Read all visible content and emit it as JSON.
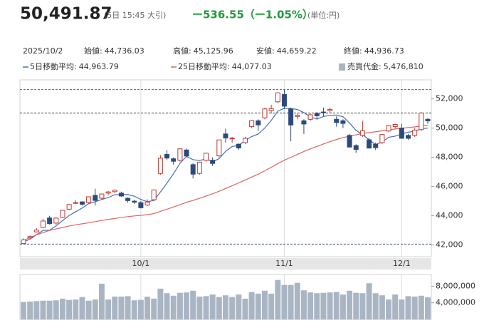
{
  "chart_data": {
    "type": "candlestick",
    "header": {
      "price": "50,491.87",
      "time": "(5日 15:45 大引)",
      "change": "ー536.55（ー1.05%）",
      "unit": "(単位:円)"
    },
    "info": {
      "date": "2025/10/2",
      "items": [
        {
          "label": "始値:",
          "value": "44,736.03"
        },
        {
          "label": "高値:",
          "value": "45,125.96"
        },
        {
          "label": "安値:",
          "value": "44,659.22"
        },
        {
          "label": "終値:",
          "value": "44,936.73"
        }
      ]
    },
    "categories": [
      null,
      null,
      null,
      null,
      null,
      null,
      null,
      null,
      null,
      null,
      null,
      null,
      null,
      null,
      null,
      null,
      null,
      null,
      "10/1",
      null,
      null,
      null,
      null,
      null,
      null,
      null,
      null,
      null,
      null,
      null,
      null,
      null,
      null,
      null,
      null,
      null,
      null,
      null,
      null,
      null,
      "11/1",
      null,
      null,
      null,
      null,
      null,
      null,
      null,
      null,
      null,
      null,
      null,
      null,
      null,
      null,
      null,
      null,
      null,
      "12/1",
      null,
      null,
      null,
      null
    ],
    "open": [
      42100,
      42500,
      42900,
      43200,
      43850,
      43500,
      43900,
      44450,
      44900,
      44950,
      44900,
      45400,
      45200,
      45550,
      45650,
      45550,
      45200,
      45000,
      44900,
      44736.03,
      45100,
      46900,
      48200,
      47900,
      47800,
      48500,
      47500,
      46900,
      47800,
      47800,
      48100,
      49600,
      49300,
      48900,
      49000,
      50100,
      50500,
      50700,
      51200,
      51800,
      52300,
      51300,
      50800,
      50500,
      50600,
      51000,
      51100,
      51200,
      50600,
      50500,
      49500,
      48800,
      49500,
      49200,
      48900,
      49000,
      49800,
      50100,
      50000,
      49500,
      49500,
      49900,
      50600
    ],
    "high": [
      42450,
      42650,
      43150,
      43800,
      44000,
      43900,
      44400,
      44800,
      45050,
      44990,
      45300,
      45850,
      45500,
      45700,
      45800,
      45650,
      45250,
      45100,
      45000,
      45125.96,
      45800,
      48150,
      48500,
      48000,
      48600,
      48600,
      47600,
      47700,
      48300,
      48000,
      49200,
      49950,
      49400,
      48950,
      49400,
      50550,
      50600,
      51400,
      51600,
      52450,
      52640,
      51400,
      51000,
      50600,
      51000,
      51100,
      51400,
      51400,
      50800,
      50600,
      49600,
      48900,
      50500,
      49300,
      49000,
      49600,
      50200,
      50300,
      50300,
      49600,
      50000,
      51100,
      50700
    ],
    "low": [
      42060,
      42400,
      42850,
      43150,
      43400,
      43400,
      43850,
      44400,
      44800,
      44700,
      44850,
      44700,
      45100,
      45400,
      45550,
      45300,
      44900,
      44800,
      44500,
      44659.22,
      45000,
      46800,
      47800,
      47500,
      47700,
      48000,
      46550,
      46800,
      47700,
      47400,
      48000,
      49000,
      49000,
      48500,
      48900,
      50000,
      49800,
      50600,
      51000,
      51700,
      51300,
      49100,
      50600,
      49600,
      50500,
      50600,
      50800,
      51000,
      50100,
      50000,
      48700,
      48300,
      49400,
      48600,
      48500,
      48900,
      49700,
      50000,
      49300,
      49200,
      49400,
      49800,
      50300
    ],
    "close": [
      42350,
      42580,
      43020,
      43640,
      43460,
      43840,
      44370,
      44770,
      44900,
      44790,
      45300,
      45050,
      45490,
      45630,
      45750,
      45350,
      45040,
      44930,
      44550,
      44936.73,
      45770,
      47940,
      47950,
      47730,
      48580,
      48090,
      46850,
      47670,
      48280,
      47580,
      49190,
      49320,
      49310,
      48640,
      49300,
      50510,
      50220,
      51310,
      51330,
      52410,
      51500,
      50210,
      50880,
      50280,
      50910,
      50840,
      51060,
      51280,
      50380,
      50320,
      48700,
      48540,
      49820,
      48630,
      48660,
      49560,
      50170,
      50250,
      49300,
      49300,
      49860,
      51030,
      50491.87
    ],
    "up_color": "#c0392b",
    "down_color": "#2c4a7c",
    "series": [
      {
        "name": "5日移動平均:",
        "legend_label": "44,963.79",
        "color": "#4a6fb5",
        "values": [
          42200,
          42400,
          42700,
          43000,
          43010,
          43310,
          43670,
          44020,
          44270,
          44530,
          44830,
          44960,
          45110,
          45250,
          45440,
          45450,
          45450,
          45340,
          45120,
          44963.79,
          45050,
          45630,
          46230,
          46870,
          47590,
          48060,
          47840,
          47780,
          47890,
          47690,
          47910,
          48410,
          48740,
          48810,
          49150,
          49420,
          49600,
          50000,
          50530,
          51160,
          51350,
          51350,
          51270,
          51060,
          50760,
          50620,
          50790,
          50870,
          50890,
          50780,
          50350,
          49840,
          49550,
          49200,
          48870,
          49040,
          49370,
          49450,
          49590,
          49720,
          49780,
          49950,
          50000
        ]
      },
      {
        "name": "25日移動平均:",
        "legend_label": "44,077.03",
        "color": "#d9665f",
        "values": [
          42300,
          42500,
          42700,
          42850,
          43000,
          43100,
          43200,
          43300,
          43380,
          43450,
          43520,
          43600,
          43680,
          43750,
          43820,
          43880,
          43940,
          43990,
          44030,
          44077.03,
          44150,
          44300,
          44450,
          44600,
          44760,
          44920,
          45050,
          45200,
          45350,
          45500,
          45680,
          45870,
          46060,
          46250,
          46440,
          46650,
          46850,
          47080,
          47320,
          47570,
          47800,
          48000,
          48200,
          48400,
          48580,
          48750,
          48910,
          49070,
          49220,
          49350,
          49450,
          49540,
          49630,
          49690,
          49750,
          49810,
          49880,
          49940,
          49990,
          50040,
          50080,
          50140,
          50200
        ]
      }
    ],
    "ylim": [
      41200,
      53300
    ],
    "yticks": [
      {
        "value": 42000,
        "label": "42,000"
      },
      {
        "value": 44000,
        "label": "44,000"
      },
      {
        "value": 46000,
        "label": "46,000"
      },
      {
        "value": 48000,
        "label": "48,000"
      },
      {
        "value": 50000,
        "label": "50,000"
      },
      {
        "value": 52000,
        "label": "52,000"
      }
    ],
    "ref_lines": [
      {
        "value": 52636.87,
        "color": "#c0392b"
      },
      {
        "value": 51028.42,
        "color": "#333333"
      },
      {
        "value": 42060,
        "color": "#4a5a7a"
      }
    ],
    "volume": {
      "name": "売買代金:",
      "legend_label": "5,476,810",
      "color": "#aab5c4",
      "values": [
        4200000,
        4300000,
        4400000,
        4500000,
        4500000,
        4600000,
        5000000,
        4700000,
        4800000,
        5400000,
        4500000,
        4800000,
        8600000,
        4800000,
        5500000,
        5500000,
        5600000,
        4600000,
        4700000,
        5476810,
        5000000,
        7400000,
        6300000,
        5700000,
        6400000,
        6500000,
        6900000,
        5500000,
        5600000,
        6000000,
        5400000,
        5800000,
        5400000,
        6000000,
        5000000,
        6600000,
        6200000,
        6900000,
        6200000,
        9500000,
        8300000,
        8300000,
        8800000,
        7000000,
        6500000,
        6300000,
        6400000,
        6500000,
        6600000,
        6000000,
        6900000,
        6400000,
        6300000,
        8700000,
        6300000,
        5800000,
        4800000,
        6000000,
        4800000,
        5600000,
        5500000,
        5700000,
        5300000
      ],
      "ylim": [
        0,
        10800000
      ],
      "yticks": [
        {
          "value": 4000000,
          "label": "4,000,000"
        },
        {
          "value": 8000000,
          "label": "8,000,000"
        }
      ]
    },
    "grid": true
  }
}
